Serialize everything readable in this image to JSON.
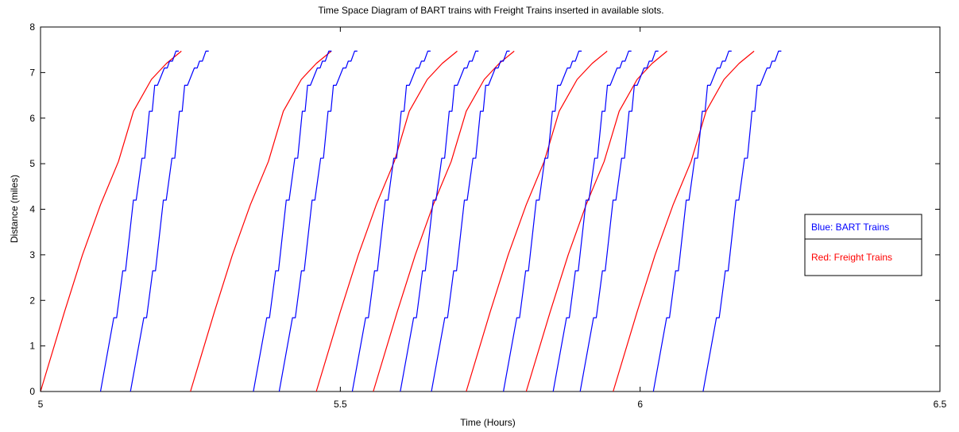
{
  "chart_data": {
    "type": "line",
    "title": "Time Space Diagram of BART trains with Freight Trains inserted in available slots.",
    "xlabel": "Time (Hours)",
    "ylabel": "Distance (miles)",
    "xlim": [
      5,
      6.5
    ],
    "ylim": [
      0,
      8
    ],
    "xticks": [
      5,
      5.5,
      6,
      6.5
    ],
    "xtick_labels": [
      "5",
      "5.5",
      "6",
      "6.5"
    ],
    "yticks": [
      0,
      1,
      2,
      3,
      4,
      5,
      6,
      7,
      8
    ],
    "ytick_labels": [
      "0",
      "1",
      "2",
      "3",
      "4",
      "5",
      "6",
      "7",
      "8"
    ],
    "grid": false,
    "legend_position": "right",
    "legend": [
      {
        "label": "Blue: BART Trains",
        "color": "#0000ff"
      },
      {
        "label": "Red: Freight Trains",
        "color": "#ff0000"
      }
    ],
    "colors": {
      "bart": "#0000ff",
      "freight": "#ff0000"
    },
    "bart_profile": {
      "t": [
        0,
        0.0222,
        0.0269,
        0.0371,
        0.0418,
        0.0549,
        0.0596,
        0.0692,
        0.0739,
        0.0816,
        0.0863,
        0.0904,
        0.0951,
        0.1066,
        0.1113,
        0.1152,
        0.1199,
        0.1258,
        0.1305
      ],
      "d": [
        0,
        1.62,
        1.62,
        2.65,
        2.65,
        4.2,
        4.2,
        5.12,
        5.12,
        6.15,
        6.15,
        6.72,
        6.72,
        7.1,
        7.1,
        7.25,
        7.25,
        7.47,
        7.47
      ]
    },
    "freight_profile": {
      "t": [
        0,
        0.04,
        0.07,
        0.1,
        0.13,
        0.155,
        0.185,
        0.21,
        0.235
      ],
      "d": [
        0,
        1.75,
        3.0,
        4.1,
        5.05,
        6.15,
        6.85,
        7.2,
        7.47
      ]
    },
    "series": [
      {
        "kind": "freight",
        "start": 5.0
      },
      {
        "kind": "bart",
        "start": 5.1
      },
      {
        "kind": "bart",
        "start": 5.15
      },
      {
        "kind": "freight",
        "start": 5.25
      },
      {
        "kind": "bart",
        "start": 5.355
      },
      {
        "kind": "bart",
        "start": 5.398
      },
      {
        "kind": "freight",
        "start": 5.46
      },
      {
        "kind": "bart",
        "start": 5.52
      },
      {
        "kind": "freight",
        "start": 5.555
      },
      {
        "kind": "bart",
        "start": 5.6
      },
      {
        "kind": "bart",
        "start": 5.652
      },
      {
        "kind": "freight",
        "start": 5.71
      },
      {
        "kind": "bart",
        "start": 5.772
      },
      {
        "kind": "freight",
        "start": 5.81
      },
      {
        "kind": "bart",
        "start": 5.855
      },
      {
        "kind": "bart",
        "start": 5.9
      },
      {
        "kind": "freight",
        "start": 5.955
      },
      {
        "kind": "bart",
        "start": 6.022
      },
      {
        "kind": "bart",
        "start": 6.105
      }
    ]
  }
}
